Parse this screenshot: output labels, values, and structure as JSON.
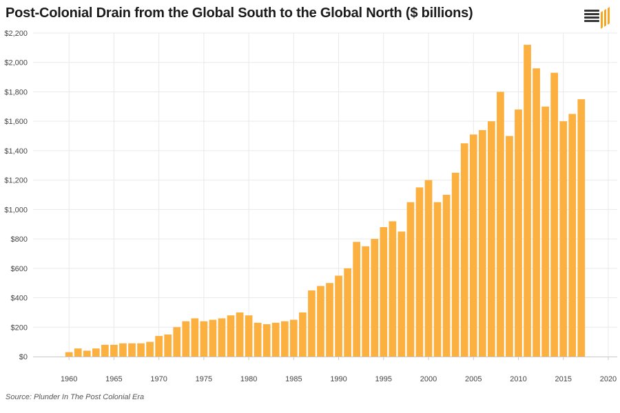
{
  "title": "Post-Colonial Drain from the Global South to the Global North ($ billions)",
  "source": "Source: Plunder In The Post Colonial Era",
  "logo_icon": "bar-chart-logo-icon",
  "colors": {
    "bar": "#FBB040",
    "grid": "#E9E9E9",
    "axis": "#C8C8C8",
    "logo_dark": "#333333",
    "logo_accent": "#F5A623"
  },
  "chart_data": {
    "type": "bar",
    "title": "Post-Colonial Drain from the Global South to the Global North ($ billions)",
    "xlabel": "",
    "ylabel": "",
    "grid": true,
    "legend": "none",
    "ylim": [
      0,
      2200
    ],
    "xlim": [
      1956,
      2021
    ],
    "y_ticks": [
      0,
      200,
      400,
      600,
      800,
      1000,
      1200,
      1400,
      1600,
      1800,
      2000,
      2200
    ],
    "y_tick_labels": [
      "$0",
      "$200",
      "$400",
      "$600",
      "$800",
      "$1,000",
      "$1,200",
      "$1,400",
      "$1,600",
      "$1,800",
      "$2,000",
      "$2,200"
    ],
    "x_ticks": [
      1960,
      1965,
      1970,
      1975,
      1980,
      1985,
      1990,
      1995,
      2000,
      2005,
      2010,
      2015,
      2020
    ],
    "x_tick_labels": [
      "1960",
      "1965",
      "1970",
      "1975",
      "1980",
      "1985",
      "1990",
      "1995",
      "2000",
      "2005",
      "2010",
      "2015",
      "2020"
    ],
    "x": [
      1960,
      1961,
      1962,
      1963,
      1964,
      1965,
      1966,
      1967,
      1968,
      1969,
      1970,
      1971,
      1972,
      1973,
      1974,
      1975,
      1976,
      1977,
      1978,
      1979,
      1980,
      1981,
      1982,
      1983,
      1984,
      1985,
      1986,
      1987,
      1988,
      1989,
      1990,
      1991,
      1992,
      1993,
      1994,
      1995,
      1996,
      1997,
      1998,
      1999,
      2000,
      2001,
      2002,
      2003,
      2004,
      2005,
      2006,
      2007,
      2008,
      2009,
      2010,
      2011,
      2012,
      2013,
      2014,
      2015,
      2016,
      2017
    ],
    "values": [
      30,
      55,
      40,
      55,
      80,
      80,
      90,
      90,
      90,
      100,
      140,
      150,
      200,
      240,
      260,
      240,
      250,
      260,
      280,
      300,
      280,
      230,
      220,
      230,
      240,
      250,
      300,
      450,
      480,
      500,
      550,
      600,
      780,
      750,
      800,
      880,
      920,
      850,
      1050,
      1150,
      1200,
      1050,
      1100,
      1250,
      1450,
      1510,
      1540,
      1600,
      1800,
      1500,
      1680,
      2120,
      1960,
      1700,
      1930,
      1600,
      1650,
      1750
    ]
  }
}
